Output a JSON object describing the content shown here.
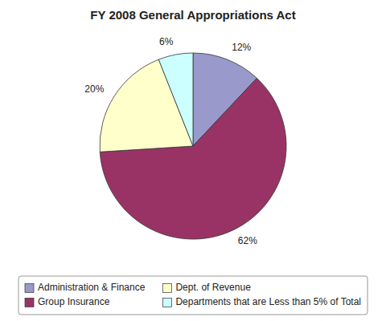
{
  "chart_data": {
    "type": "pie",
    "title": "FY 2008 General Appropriations Act",
    "categories": [
      "Administration & Finance",
      "Group Insurance",
      "Dept. of Revenue",
      "Departments that are Less than 5% of Total"
    ],
    "values": [
      12,
      62,
      20,
      6
    ],
    "value_labels": [
      "12%",
      "62%",
      "20%",
      "6%"
    ],
    "colors": [
      "#9999CC",
      "#993366",
      "#FFFFCC",
      "#CCFFFF"
    ],
    "data_labels": true,
    "legend": "bottom"
  }
}
